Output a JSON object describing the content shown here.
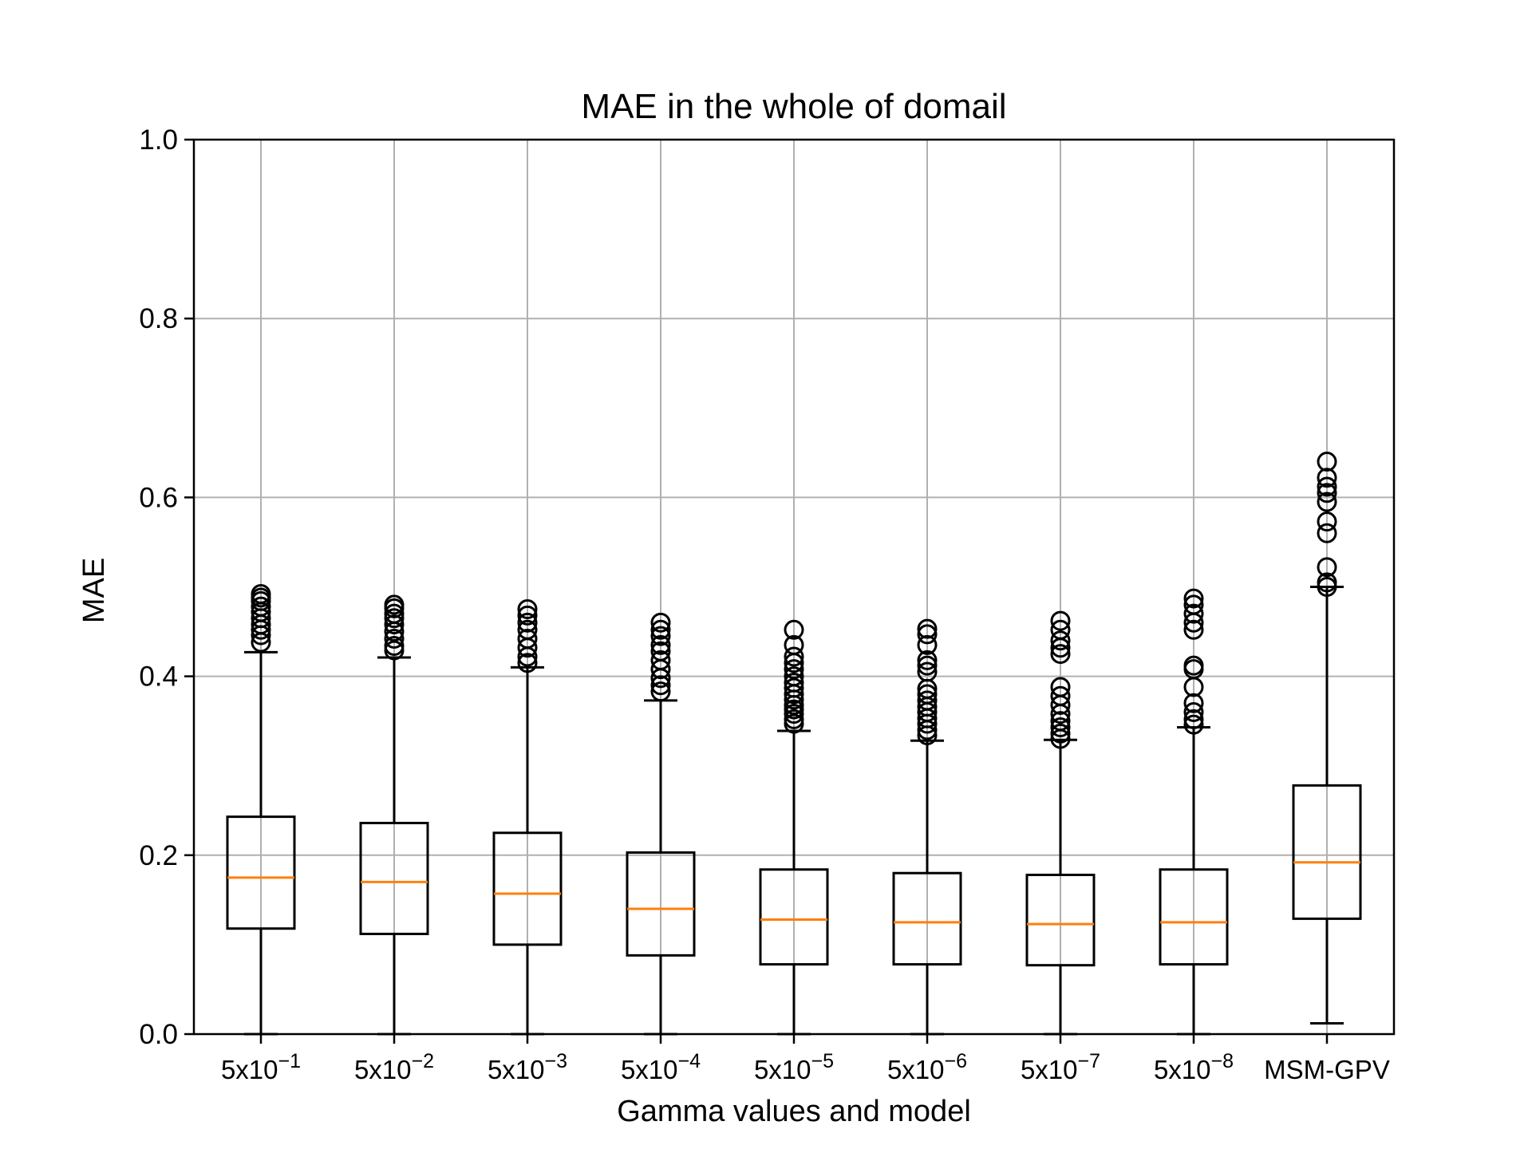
{
  "chart_data": {
    "type": "box",
    "title": "MAE in the whole of domail",
    "xlabel": "Gamma values and model",
    "ylabel": "MAE",
    "ylim": [
      0,
      1.0
    ],
    "yticks": [
      0.0,
      0.2,
      0.4,
      0.6,
      0.8,
      1.0
    ],
    "ytick_labels": [
      "0.0",
      "0.2",
      "0.4",
      "0.6",
      "0.8",
      "1.0"
    ],
    "grid": true,
    "categories": [
      {
        "base": "5x10",
        "exp": "−1"
      },
      {
        "base": "5x10",
        "exp": "−2"
      },
      {
        "base": "5x10",
        "exp": "−3"
      },
      {
        "base": "5x10",
        "exp": "−4"
      },
      {
        "base": "5x10",
        "exp": "−5"
      },
      {
        "base": "5x10",
        "exp": "−6"
      },
      {
        "base": "5x10",
        "exp": "−7"
      },
      {
        "base": "5x10",
        "exp": "−8"
      },
      {
        "base": "MSM-GPV",
        "exp": ""
      }
    ],
    "boxes": [
      {
        "whislo": 0.0,
        "q1": 0.118,
        "med": 0.175,
        "q3": 0.243,
        "whishi": 0.427,
        "fliers": [
          0.438,
          0.446,
          0.452,
          0.458,
          0.465,
          0.472,
          0.478,
          0.484,
          0.488,
          0.492
        ]
      },
      {
        "whislo": 0.0,
        "q1": 0.112,
        "med": 0.17,
        "q3": 0.236,
        "whishi": 0.421,
        "fliers": [
          0.429,
          0.434,
          0.442,
          0.45,
          0.458,
          0.465,
          0.47,
          0.476,
          0.48
        ]
      },
      {
        "whislo": 0.0,
        "q1": 0.1,
        "med": 0.157,
        "q3": 0.225,
        "whishi": 0.41,
        "fliers": [
          0.415,
          0.422,
          0.432,
          0.442,
          0.452,
          0.46,
          0.468,
          0.475
        ]
      },
      {
        "whislo": 0.0,
        "q1": 0.088,
        "med": 0.14,
        "q3": 0.203,
        "whishi": 0.373,
        "fliers": [
          0.383,
          0.39,
          0.398,
          0.408,
          0.418,
          0.428,
          0.435,
          0.445,
          0.452,
          0.46
        ]
      },
      {
        "whislo": 0.0,
        "q1": 0.078,
        "med": 0.128,
        "q3": 0.184,
        "whishi": 0.339,
        "fliers": [
          0.347,
          0.352,
          0.358,
          0.363,
          0.368,
          0.374,
          0.38,
          0.387,
          0.393,
          0.4,
          0.408,
          0.415,
          0.422,
          0.435,
          0.452
        ]
      },
      {
        "whislo": 0.0,
        "q1": 0.078,
        "med": 0.125,
        "q3": 0.18,
        "whishi": 0.328,
        "fliers": [
          0.334,
          0.34,
          0.347,
          0.353,
          0.36,
          0.366,
          0.373,
          0.38,
          0.386,
          0.405,
          0.412,
          0.418,
          0.435,
          0.447,
          0.453
        ]
      },
      {
        "whislo": 0.0,
        "q1": 0.077,
        "med": 0.123,
        "q3": 0.178,
        "whishi": 0.329,
        "fliers": [
          0.33,
          0.336,
          0.343,
          0.35,
          0.358,
          0.368,
          0.378,
          0.388,
          0.425,
          0.432,
          0.44,
          0.452,
          0.462
        ]
      },
      {
        "whislo": 0.0,
        "q1": 0.078,
        "med": 0.125,
        "q3": 0.184,
        "whishi": 0.343,
        "fliers": [
          0.346,
          0.352,
          0.36,
          0.37,
          0.388,
          0.408,
          0.412,
          0.452,
          0.46,
          0.47,
          0.48,
          0.487
        ]
      },
      {
        "whislo": 0.012,
        "q1": 0.129,
        "med": 0.192,
        "q3": 0.278,
        "whishi": 0.5,
        "fliers": [
          0.5,
          0.505,
          0.522,
          0.56,
          0.573,
          0.595,
          0.605,
          0.612,
          0.622,
          0.64
        ]
      }
    ]
  },
  "colors": {
    "box": "#000000",
    "median": "#ff7f0e",
    "grid": "#b0b0b0",
    "background": "#ffffff"
  }
}
